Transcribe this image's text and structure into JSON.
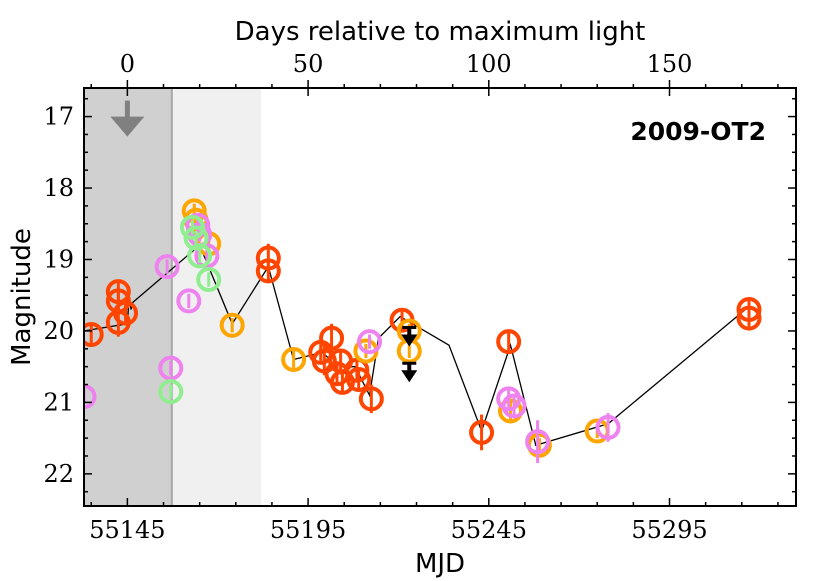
{
  "chart_data": {
    "type": "scatter",
    "title": "2009-OT2",
    "xlabel": "MJD",
    "ylabel": "Magnitude",
    "x2label": "Days relative to maximum light",
    "xlim": [
      55133,
      55330
    ],
    "ylim": [
      22.45,
      16.6
    ],
    "x_ticks": [
      55145,
      55195,
      55245,
      55295
    ],
    "y_ticks": [
      17,
      18,
      19,
      20,
      21,
      22
    ],
    "max_light_mjd": 55145,
    "x2_ticks": [
      0,
      50,
      100,
      150
    ],
    "shaded_regions": [
      {
        "x_start": 55133,
        "x_end": 55157.3,
        "color": "#d0d0d0"
      },
      {
        "x_start": 55157.3,
        "x_end": 55182,
        "color": "#f0f0f0"
      }
    ],
    "upper_limits": [
      {
        "x": 55145,
        "y": 17.0,
        "color": "#808080"
      },
      {
        "x": 55223,
        "y": 20.05,
        "color": "#000000"
      },
      {
        "x": 55223,
        "y": 20.55,
        "color": "#000000"
      }
    ],
    "line": {
      "color": "#000000",
      "x": [
        55133,
        55145,
        55145.5,
        55146,
        55146.5,
        55165,
        55174,
        55184,
        55191,
        55199,
        55201,
        55204,
        55207,
        55208,
        55212,
        55214.5,
        55220.5,
        55234,
        55243,
        55251,
        55258,
        55278,
        55316
      ],
      "y": [
        20.0,
        19.9,
        19.5,
        19.7,
        19.6,
        18.8,
        19.9,
        19.1,
        20.4,
        20.3,
        20.4,
        20.6,
        20.5,
        20.5,
        20.9,
        20.1,
        19.8,
        20.2,
        21.4,
        20.2,
        21.6,
        21.3,
        19.7
      ]
    },
    "series": [
      {
        "name": "red-orange",
        "color": "#ff4500",
        "points": [
          {
            "x": 55135,
            "y": 20.05,
            "err": 0.15
          },
          {
            "x": 55142.5,
            "y": 19.45,
            "err": 0.12
          },
          {
            "x": 55142.5,
            "y": 19.58,
            "err": 0.12
          },
          {
            "x": 55142.5,
            "y": 19.88,
            "err": 0.2
          },
          {
            "x": 55144.5,
            "y": 19.75,
            "err": 0.12
          },
          {
            "x": 55184,
            "y": 18.98,
            "err": 0.2
          },
          {
            "x": 55184,
            "y": 19.16,
            "err": 0.12
          },
          {
            "x": 55198.5,
            "y": 20.3,
            "err": 0.12
          },
          {
            "x": 55199.5,
            "y": 20.42,
            "err": 0.2
          },
          {
            "x": 55201.5,
            "y": 20.1,
            "err": 0.2
          },
          {
            "x": 55203,
            "y": 20.6,
            "err": 0.15
          },
          {
            "x": 55204,
            "y": 20.42,
            "err": 0.12
          },
          {
            "x": 55204.5,
            "y": 20.72,
            "err": 0.15
          },
          {
            "x": 55208.5,
            "y": 20.55,
            "err": 0.15
          },
          {
            "x": 55209,
            "y": 20.68,
            "err": 0.12
          },
          {
            "x": 55212.5,
            "y": 20.95,
            "err": 0.2
          },
          {
            "x": 55221,
            "y": 19.85,
            "err": 0.12
          },
          {
            "x": 55243,
            "y": 21.42,
            "err": 0.25
          },
          {
            "x": 55250.5,
            "y": 20.15,
            "err": 0.15
          },
          {
            "x": 55317,
            "y": 19.7,
            "err": 0.12
          },
          {
            "x": 55317,
            "y": 19.82,
            "err": 0.12
          }
        ]
      },
      {
        "name": "orange",
        "color": "#ffa500",
        "points": [
          {
            "x": 55163.5,
            "y": 18.32,
            "err": 0.1
          },
          {
            "x": 55164,
            "y": 18.45,
            "err": 0.1
          },
          {
            "x": 55167.5,
            "y": 18.78,
            "err": 0.1
          },
          {
            "x": 55174,
            "y": 19.92,
            "err": 0.1
          },
          {
            "x": 55191,
            "y": 20.4,
            "err": 0.15
          },
          {
            "x": 55211,
            "y": 20.28,
            "err": 0.1
          },
          {
            "x": 55223,
            "y": 20.0,
            "err": 0.1
          },
          {
            "x": 55223,
            "y": 20.28,
            "err": 0.1
          },
          {
            "x": 55251,
            "y": 21.12,
            "err": 0.12
          },
          {
            "x": 55259,
            "y": 21.6,
            "err": 0.1
          },
          {
            "x": 55275,
            "y": 21.4,
            "err": 0.1
          }
        ]
      },
      {
        "name": "violet",
        "color": "#ee82ee",
        "points": [
          {
            "x": 55133,
            "y": 20.92,
            "err": 0.1
          },
          {
            "x": 55156,
            "y": 19.1,
            "err": 0.1
          },
          {
            "x": 55157,
            "y": 20.52,
            "err": 0.1
          },
          {
            "x": 55162,
            "y": 19.58,
            "err": 0.1
          },
          {
            "x": 55164.5,
            "y": 18.52,
            "err": 0.1
          },
          {
            "x": 55165,
            "y": 18.65,
            "err": 0.1
          },
          {
            "x": 55167,
            "y": 18.95,
            "err": 0.1
          },
          {
            "x": 55212,
            "y": 20.15,
            "err": 0.1
          },
          {
            "x": 55250.5,
            "y": 20.95,
            "err": 0.15
          },
          {
            "x": 55252,
            "y": 21.05,
            "err": 0.12
          },
          {
            "x": 55258.5,
            "y": 21.55,
            "err": 0.3
          },
          {
            "x": 55278,
            "y": 21.35,
            "err": 0.2
          }
        ]
      },
      {
        "name": "light-green",
        "color": "#90ee90",
        "points": [
          {
            "x": 55157,
            "y": 20.85,
            "err": 0.1
          },
          {
            "x": 55163,
            "y": 18.55,
            "err": 0.1
          },
          {
            "x": 55164,
            "y": 18.7,
            "err": 0.1
          },
          {
            "x": 55165,
            "y": 18.95,
            "err": 0.1
          },
          {
            "x": 55167.5,
            "y": 19.28,
            "err": 0.1
          }
        ]
      }
    ]
  }
}
